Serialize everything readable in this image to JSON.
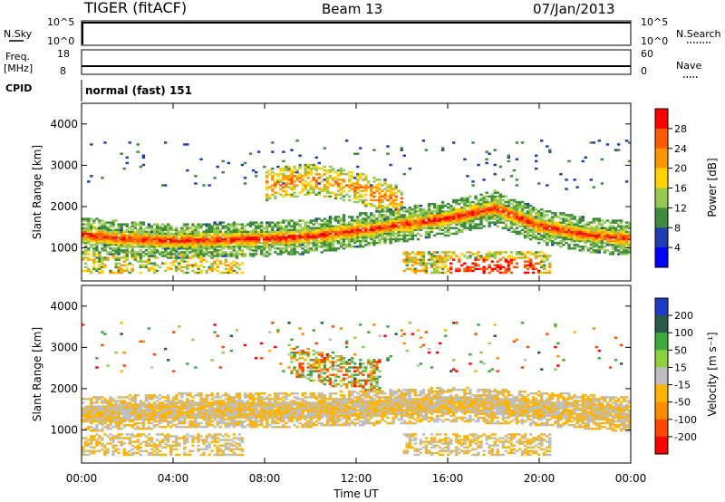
{
  "header": {
    "radar": "TIGER (fitACF)",
    "beam": "Beam 13",
    "date": "07/Jan/2013"
  },
  "status_panel": {
    "left_label": "N.Sky",
    "right_label": "N.Search",
    "left_ticks": [
      "10^5",
      "10^0"
    ],
    "right_ticks": [
      "10^5",
      "10^0"
    ]
  },
  "freq_panel": {
    "left_label_1": "Freq.",
    "left_label_2": "[MHz]",
    "right_label": "Nave",
    "left_ticks": [
      "18",
      "8"
    ],
    "right_ticks": [
      "60",
      "0"
    ]
  },
  "cpid": {
    "label": "CPID",
    "value": "normal (fast) 151"
  },
  "power_colorbar": {
    "title": "Power [dB]",
    "labels": [
      "28",
      "24",
      "20",
      "16",
      "12",
      "8",
      "4"
    ],
    "colors": [
      "#ff0000",
      "#ff5a00",
      "#ff9600",
      "#ffd200",
      "#96c850",
      "#3c8c3c",
      "#1e3cb4",
      "#0000ff"
    ]
  },
  "velocity_colorbar": {
    "title": "Velocity [m s⁻¹]",
    "labels": [
      "200",
      "100",
      "50",
      "15",
      "-15",
      "-50",
      "-100",
      "-200"
    ],
    "colors": [
      "#1e3cc8",
      "#285a46",
      "#3caa3c",
      "#8cd23c",
      "#bebebe",
      "#ffb400",
      "#ff8c00",
      "#ff4600",
      "#ff0000"
    ]
  },
  "x_axis": {
    "title": "Time UT",
    "ticks": [
      "00:00",
      "04:00",
      "08:00",
      "12:00",
      "16:00",
      "20:00",
      "00:00"
    ]
  },
  "chart_data": [
    {
      "type": "heatmap",
      "title": "Power [dB]",
      "xlabel": "Time UT",
      "ylabel": "Slant Range [km]",
      "xlim": [
        0,
        24
      ],
      "ylim": [
        200,
        4500
      ],
      "yticks": [
        "1000",
        "2000",
        "3000",
        "4000"
      ],
      "clim": [
        0,
        32
      ],
      "series": [
        {
          "x": [
            0,
            2,
            4,
            6,
            8,
            10,
            12,
            14,
            16,
            18,
            20,
            22,
            24
          ],
          "y": [
            1300,
            1200,
            1150,
            1180,
            1200,
            1260,
            1400,
            1550,
            1700,
            1950,
            1500,
            1300,
            1200
          ]
        },
        {
          "x": [
            8,
            10,
            12,
            13,
            14
          ],
          "y": [
            2500,
            2650,
            2450,
            2250,
            2100
          ]
        }
      ]
    },
    {
      "type": "heatmap",
      "title": "Velocity [m s⁻¹]",
      "xlabel": "Time UT",
      "ylabel": "Slant Range [km]",
      "xlim": [
        0,
        24
      ],
      "ylim": [
        200,
        4500
      ],
      "yticks": [
        "1000",
        "2000",
        "3000",
        "4000"
      ],
      "clim": [
        -250,
        250
      ],
      "series": [
        {
          "x": [
            0,
            4,
            8,
            12,
            16,
            20,
            24
          ],
          "y": [
            1350,
            1450,
            1450,
            1500,
            1600,
            1500,
            1350
          ]
        },
        {
          "x": [
            9,
            11,
            13
          ],
          "y": [
            2700,
            2400,
            2300
          ]
        }
      ]
    }
  ]
}
